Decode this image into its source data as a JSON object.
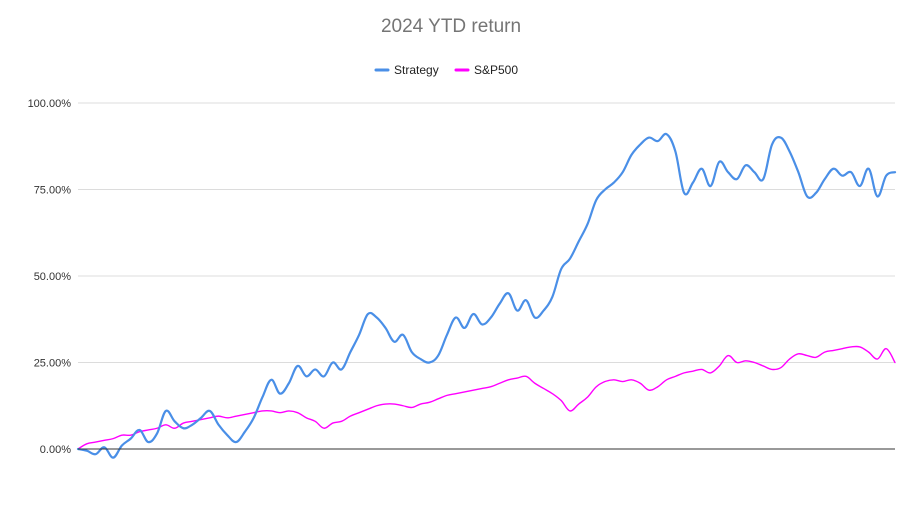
{
  "chart_data": {
    "type": "line",
    "title": "2024 YTD return",
    "xlabel": "",
    "ylabel": "",
    "ylim": [
      0,
      100
    ],
    "yticks": [
      "0.00%",
      "25.00%",
      "50.00%",
      "75.00%",
      "100.00%"
    ],
    "grid": true,
    "legend_position": "top-center",
    "series": [
      {
        "name": "Strategy",
        "color": "#4a8fe7",
        "values": [
          0,
          -0.5,
          -1.5,
          0.5,
          -2.5,
          1,
          3,
          5.5,
          2,
          4.5,
          11,
          8,
          6,
          7,
          9,
          11,
          7,
          4,
          2,
          5,
          9,
          15,
          20,
          16,
          19,
          24,
          21,
          23,
          21,
          25,
          23,
          28,
          33,
          39,
          38,
          35,
          31,
          33,
          28,
          26,
          25,
          27,
          33,
          38,
          35,
          39,
          36,
          38,
          42,
          45,
          40,
          43,
          38,
          40,
          44,
          52,
          55,
          60,
          65,
          72,
          75,
          77,
          80,
          85,
          88,
          90,
          89,
          91,
          86,
          74,
          77,
          81,
          76,
          83,
          80,
          78,
          82,
          80,
          78,
          88,
          90,
          86,
          80,
          73,
          74,
          78,
          81,
          79,
          80,
          76,
          81,
          73,
          79,
          80
        ]
      },
      {
        "name": "S&P500",
        "color": "#ff00ff",
        "values": [
          0,
          1.5,
          2,
          2.5,
          3,
          4,
          4,
          5,
          5.5,
          6,
          7,
          6,
          7.5,
          8,
          8.5,
          9,
          9.5,
          9,
          9.5,
          10,
          10.5,
          11,
          11,
          10.5,
          11,
          10.5,
          9,
          8,
          6,
          7.5,
          8,
          9.5,
          10.5,
          11.5,
          12.5,
          13,
          13,
          12.5,
          12,
          13,
          13.5,
          14.5,
          15.5,
          16,
          16.5,
          17,
          17.5,
          18,
          19,
          20,
          20.5,
          21,
          19,
          17.5,
          16,
          14,
          11,
          13,
          15,
          18,
          19.5,
          20,
          19.5,
          20,
          19,
          17,
          18,
          20,
          21,
          22,
          22.5,
          23,
          22,
          24,
          27,
          25,
          25.5,
          25,
          24,
          23,
          23.5,
          26,
          27.5,
          27,
          26.5,
          28,
          28.5,
          29,
          29.5,
          29.5,
          28,
          26,
          29,
          25
        ]
      }
    ]
  }
}
